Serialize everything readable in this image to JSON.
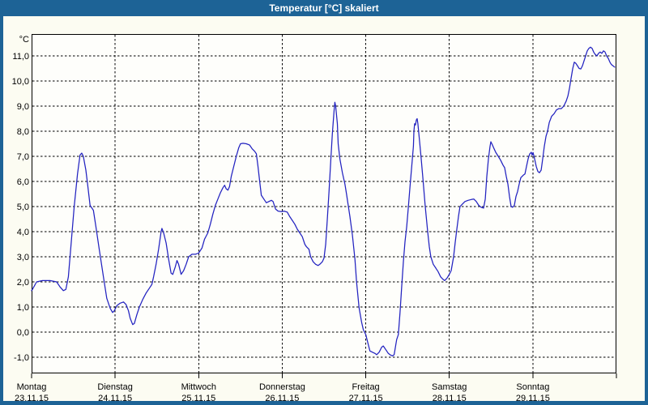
{
  "window": {
    "title": "Temperatur [°C] skaliert",
    "accent_color": "#1d6396",
    "background_color": "#fcfcf2"
  },
  "chart_data": {
    "type": "line",
    "title": "Temperatur [°C] skaliert",
    "y_unit": "°C",
    "ylim": [
      -1.65,
      11.87
    ],
    "grid": "dashed",
    "legend": "none",
    "line_color": "#2222c0",
    "plot_bg": "#fefefb",
    "y_ticks": [
      {
        "v": 11,
        "label": "11,0"
      },
      {
        "v": 10,
        "label": "10,0"
      },
      {
        "v": 9,
        "label": "9,0"
      },
      {
        "v": 8,
        "label": "8,0"
      },
      {
        "v": 7,
        "label": "7,0"
      },
      {
        "v": 6,
        "label": "6,0"
      },
      {
        "v": 5,
        "label": "5,0"
      },
      {
        "v": 4,
        "label": "4,0"
      },
      {
        "v": 3,
        "label": "3,0"
      },
      {
        "v": 2,
        "label": "2,0"
      },
      {
        "v": 1,
        "label": "1,0"
      },
      {
        "v": 0,
        "label": "0,0"
      },
      {
        "v": -1,
        "label": "-1,0"
      }
    ],
    "x_days": [
      {
        "name": "Montag",
        "date": "23.11.15"
      },
      {
        "name": "Dienstag",
        "date": "24.11.15"
      },
      {
        "name": "Mittwoch",
        "date": "25.11.15"
      },
      {
        "name": "Donnerstag",
        "date": "26.11.15"
      },
      {
        "name": "Freitag",
        "date": "27.11.15"
      },
      {
        "name": "Samstag",
        "date": "28.11.15"
      },
      {
        "name": "Sonntag",
        "date": "29.11.15"
      }
    ],
    "series": [
      {
        "name": "Temperatur",
        "unit": "°C",
        "x_unit": "days_since_monday_00h",
        "points": [
          [
            0,
            1.65
          ],
          [
            0.01,
            1.7
          ],
          [
            0.06,
            2.0
          ],
          [
            0.13,
            2.05
          ],
          [
            0.22,
            2.05
          ],
          [
            0.3,
            2.0
          ],
          [
            0.34,
            1.8
          ],
          [
            0.38,
            1.65
          ],
          [
            0.41,
            1.7
          ],
          [
            0.44,
            2.2
          ],
          [
            0.47,
            3.4
          ],
          [
            0.51,
            5.0
          ],
          [
            0.55,
            6.3
          ],
          [
            0.58,
            7.05
          ],
          [
            0.6,
            7.13
          ],
          [
            0.62,
            7.0
          ],
          [
            0.65,
            6.45
          ],
          [
            0.67,
            5.9
          ],
          [
            0.7,
            5.05
          ],
          [
            0.74,
            4.85
          ],
          [
            0.77,
            4.2
          ],
          [
            0.81,
            3.3
          ],
          [
            0.86,
            2.2
          ],
          [
            0.9,
            1.35
          ],
          [
            0.94,
            0.95
          ],
          [
            0.97,
            0.78
          ],
          [
            0.99,
            0.85
          ],
          [
            1.02,
            1.05
          ],
          [
            1.06,
            1.15
          ],
          [
            1.1,
            1.2
          ],
          [
            1.13,
            1.1
          ],
          [
            1.16,
            0.85
          ],
          [
            1.18,
            0.55
          ],
          [
            1.21,
            0.3
          ],
          [
            1.23,
            0.35
          ],
          [
            1.26,
            0.7
          ],
          [
            1.29,
            1.0
          ],
          [
            1.33,
            1.3
          ],
          [
            1.37,
            1.55
          ],
          [
            1.41,
            1.75
          ],
          [
            1.44,
            1.9
          ],
          [
            1.46,
            2.2
          ],
          [
            1.49,
            2.7
          ],
          [
            1.52,
            3.3
          ],
          [
            1.55,
            4.0
          ],
          [
            1.56,
            4.13
          ],
          [
            1.58,
            3.95
          ],
          [
            1.61,
            3.55
          ],
          [
            1.64,
            2.9
          ],
          [
            1.67,
            2.35
          ],
          [
            1.69,
            2.3
          ],
          [
            1.72,
            2.6
          ],
          [
            1.74,
            2.85
          ],
          [
            1.76,
            2.7
          ],
          [
            1.79,
            2.3
          ],
          [
            1.82,
            2.45
          ],
          [
            1.85,
            2.7
          ],
          [
            1.88,
            3.0
          ],
          [
            1.92,
            3.1
          ],
          [
            1.96,
            3.1
          ],
          [
            2.0,
            3.15
          ],
          [
            2.04,
            3.35
          ],
          [
            2.07,
            3.7
          ],
          [
            2.11,
            3.95
          ],
          [
            2.14,
            4.3
          ],
          [
            2.17,
            4.7
          ],
          [
            2.2,
            5.05
          ],
          [
            2.23,
            5.3
          ],
          [
            2.26,
            5.55
          ],
          [
            2.29,
            5.75
          ],
          [
            2.31,
            5.85
          ],
          [
            2.33,
            5.7
          ],
          [
            2.35,
            5.65
          ],
          [
            2.37,
            5.8
          ],
          [
            2.39,
            6.2
          ],
          [
            2.42,
            6.6
          ],
          [
            2.45,
            7.0
          ],
          [
            2.48,
            7.35
          ],
          [
            2.5,
            7.5
          ],
          [
            2.53,
            7.52
          ],
          [
            2.57,
            7.5
          ],
          [
            2.61,
            7.45
          ],
          [
            2.64,
            7.3
          ],
          [
            2.67,
            7.2
          ],
          [
            2.69,
            7.1
          ],
          [
            2.71,
            6.6
          ],
          [
            2.73,
            6.0
          ],
          [
            2.75,
            5.45
          ],
          [
            2.78,
            5.3
          ],
          [
            2.81,
            5.15
          ],
          [
            2.84,
            5.2
          ],
          [
            2.87,
            5.25
          ],
          [
            2.89,
            5.2
          ],
          [
            2.92,
            4.9
          ],
          [
            2.95,
            4.82
          ],
          [
            2.99,
            4.8
          ],
          [
            3.02,
            4.82
          ],
          [
            3.06,
            4.78
          ],
          [
            3.09,
            4.6
          ],
          [
            3.12,
            4.45
          ],
          [
            3.15,
            4.3
          ],
          [
            3.18,
            4.1
          ],
          [
            3.21,
            3.95
          ],
          [
            3.24,
            3.8
          ],
          [
            3.27,
            3.5
          ],
          [
            3.29,
            3.4
          ],
          [
            3.32,
            3.3
          ],
          [
            3.34,
            3.0
          ],
          [
            3.37,
            2.8
          ],
          [
            3.4,
            2.7
          ],
          [
            3.43,
            2.65
          ],
          [
            3.45,
            2.7
          ],
          [
            3.48,
            2.8
          ],
          [
            3.5,
            2.95
          ],
          [
            3.52,
            3.5
          ],
          [
            3.54,
            4.5
          ],
          [
            3.56,
            5.6
          ],
          [
            3.58,
            6.8
          ],
          [
            3.6,
            7.9
          ],
          [
            3.62,
            8.8
          ],
          [
            3.63,
            9.15
          ],
          [
            3.64,
            9.0
          ],
          [
            3.66,
            8.3
          ],
          [
            3.67,
            7.5
          ],
          [
            3.69,
            6.9
          ],
          [
            3.72,
            6.35
          ],
          [
            3.75,
            5.9
          ],
          [
            3.77,
            5.5
          ],
          [
            3.79,
            5.05
          ],
          [
            3.81,
            4.6
          ],
          [
            3.84,
            3.85
          ],
          [
            3.87,
            2.9
          ],
          [
            3.89,
            2.0
          ],
          [
            3.92,
            0.97
          ],
          [
            3.95,
            0.4
          ],
          [
            3.97,
            0.1
          ],
          [
            4.0,
            -0.1
          ],
          [
            4.03,
            -0.5
          ],
          [
            4.05,
            -0.75
          ],
          [
            4.08,
            -0.8
          ],
          [
            4.11,
            -0.85
          ],
          [
            4.13,
            -0.9
          ],
          [
            4.16,
            -0.8
          ],
          [
            4.19,
            -0.6
          ],
          [
            4.21,
            -0.55
          ],
          [
            4.24,
            -0.7
          ],
          [
            4.27,
            -0.85
          ],
          [
            4.29,
            -0.9
          ],
          [
            4.32,
            -0.95
          ],
          [
            4.34,
            -0.9
          ],
          [
            4.37,
            -0.3
          ],
          [
            4.39,
            -0.1
          ],
          [
            4.41,
            0.8
          ],
          [
            4.43,
            1.8
          ],
          [
            4.45,
            2.8
          ],
          [
            4.47,
            3.6
          ],
          [
            4.49,
            4.2
          ],
          [
            4.51,
            5.0
          ],
          [
            4.53,
            5.8
          ],
          [
            4.55,
            6.6
          ],
          [
            4.57,
            7.4
          ],
          [
            4.576,
            8.0
          ],
          [
            4.585,
            8.3
          ],
          [
            4.595,
            8.25
          ],
          [
            4.605,
            8.45
          ],
          [
            4.615,
            8.5
          ],
          [
            4.624,
            8.3
          ],
          [
            4.644,
            7.6
          ],
          [
            4.663,
            6.9
          ],
          [
            4.682,
            6.2
          ],
          [
            4.712,
            5.0
          ],
          [
            4.741,
            4.0
          ],
          [
            4.76,
            3.4
          ],
          [
            4.779,
            3.0
          ],
          [
            4.808,
            2.7
          ],
          [
            4.838,
            2.55
          ],
          [
            4.867,
            2.4
          ],
          [
            4.896,
            2.2
          ],
          [
            4.925,
            2.1
          ],
          [
            4.944,
            2.05
          ],
          [
            4.973,
            2.15
          ],
          [
            5.0,
            2.3
          ],
          [
            5.022,
            2.45
          ],
          [
            5.051,
            3.0
          ],
          [
            5.07,
            3.55
          ],
          [
            5.09,
            4.1
          ],
          [
            5.109,
            4.6
          ],
          [
            5.128,
            5.0
          ],
          [
            5.157,
            5.1
          ],
          [
            5.187,
            5.2
          ],
          [
            5.225,
            5.25
          ],
          [
            5.264,
            5.28
          ],
          [
            5.293,
            5.3
          ],
          [
            5.323,
            5.2
          ],
          [
            5.352,
            5.05
          ],
          [
            5.381,
            4.97
          ],
          [
            5.41,
            4.94
          ],
          [
            5.43,
            5.3
          ],
          [
            5.449,
            6.2
          ],
          [
            5.468,
            6.9
          ],
          [
            5.488,
            7.4
          ],
          [
            5.497,
            7.58
          ],
          [
            5.517,
            7.45
          ],
          [
            5.536,
            7.3
          ],
          [
            5.555,
            7.16
          ],
          [
            5.585,
            7.0
          ],
          [
            5.614,
            6.85
          ],
          [
            5.643,
            6.65
          ],
          [
            5.662,
            6.55
          ],
          [
            5.681,
            6.2
          ],
          [
            5.701,
            5.9
          ],
          [
            5.72,
            5.4
          ],
          [
            5.74,
            5.0
          ],
          [
            5.759,
            4.97
          ],
          [
            5.778,
            5.05
          ],
          [
            5.798,
            5.4
          ],
          [
            5.817,
            5.6
          ],
          [
            5.837,
            5.9
          ],
          [
            5.856,
            6.15
          ],
          [
            5.885,
            6.25
          ],
          [
            5.905,
            6.3
          ],
          [
            5.924,
            6.6
          ],
          [
            5.943,
            6.9
          ],
          [
            5.963,
            7.1
          ],
          [
            5.982,
            7.16
          ],
          [
            5.992,
            7.05
          ],
          [
            6.002,
            7.15
          ],
          [
            6.021,
            6.9
          ],
          [
            6.04,
            6.6
          ],
          [
            6.06,
            6.4
          ],
          [
            6.079,
            6.35
          ],
          [
            6.099,
            6.45
          ],
          [
            6.118,
            6.9
          ],
          [
            6.137,
            7.4
          ],
          [
            6.157,
            7.8
          ],
          [
            6.176,
            8.0
          ],
          [
            6.196,
            8.35
          ],
          [
            6.225,
            8.6
          ],
          [
            6.254,
            8.7
          ],
          [
            6.283,
            8.85
          ],
          [
            6.312,
            8.9
          ],
          [
            6.341,
            8.9
          ],
          [
            6.37,
            9.0
          ],
          [
            6.399,
            9.2
          ],
          [
            6.419,
            9.4
          ],
          [
            6.438,
            9.7
          ],
          [
            6.457,
            10.1
          ],
          [
            6.477,
            10.5
          ],
          [
            6.496,
            10.75
          ],
          [
            6.515,
            10.7
          ],
          [
            6.535,
            10.6
          ],
          [
            6.554,
            10.5
          ],
          [
            6.574,
            10.48
          ],
          [
            6.593,
            10.6
          ],
          [
            6.612,
            10.8
          ],
          [
            6.632,
            11.0
          ],
          [
            6.651,
            11.2
          ],
          [
            6.67,
            11.3
          ],
          [
            6.69,
            11.35
          ],
          [
            6.709,
            11.3
          ],
          [
            6.728,
            11.15
          ],
          [
            6.748,
            11.05
          ],
          [
            6.767,
            11.0
          ],
          [
            6.786,
            11.1
          ],
          [
            6.806,
            11.15
          ],
          [
            6.825,
            11.1
          ],
          [
            6.845,
            11.2
          ],
          [
            6.864,
            11.15
          ],
          [
            6.883,
            11.0
          ],
          [
            6.903,
            10.9
          ],
          [
            6.922,
            10.75
          ],
          [
            6.941,
            10.65
          ],
          [
            6.961,
            10.6
          ],
          [
            6.98,
            10.55
          ]
        ]
      }
    ]
  }
}
